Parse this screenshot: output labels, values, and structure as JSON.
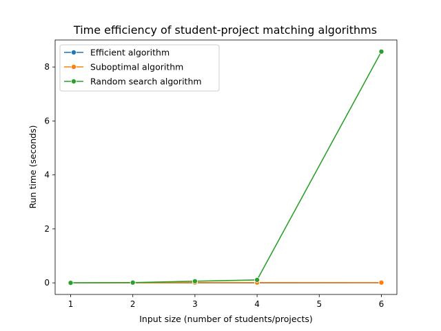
{
  "chart_data": {
    "type": "line",
    "title": "Time efficiency of student-project matching algorithms",
    "xlabel": "Input size (number of students/projects)",
    "ylabel": "Run time (seconds)",
    "xlim": [
      0.75,
      6.25
    ],
    "ylim": [
      -0.43,
      9.0
    ],
    "xticks": [
      1,
      2,
      3,
      4,
      5,
      6
    ],
    "yticks": [
      0,
      2,
      4,
      6,
      8
    ],
    "grid": false,
    "legend_position": "upper-left",
    "series": [
      {
        "name": "Efficient algorithm",
        "color": "#1f77b4",
        "marker": "circle",
        "x": [
          1,
          2,
          3,
          4,
          6
        ],
        "y": [
          0.0,
          0.0,
          0.0,
          0.0,
          0.001
        ]
      },
      {
        "name": "Suboptimal algorithm",
        "color": "#ff7f0e",
        "marker": "circle",
        "x": [
          1,
          2,
          3,
          4,
          6
        ],
        "y": [
          0.0,
          0.0,
          0.01,
          0.01,
          0.01
        ]
      },
      {
        "name": "Random search algorithm",
        "color": "#2ca02c",
        "marker": "circle",
        "x": [
          1,
          2,
          3,
          4,
          6
        ],
        "y": [
          0.0,
          0.01,
          0.06,
          0.11,
          8.57
        ]
      }
    ]
  }
}
